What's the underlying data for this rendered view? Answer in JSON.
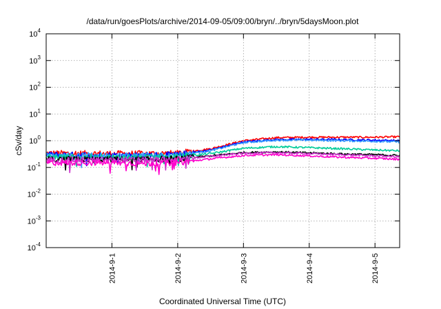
{
  "chart_data": {
    "type": "line",
    "title": "/data/run/goesPlots/archive/2014-09-05/09:00/bryn/../bryn/5daysMoon.plot",
    "xlabel": "Coordinated Universal Time (UTC)",
    "ylabel": "cSv/day",
    "yscale": "log",
    "ylim": [
      0.0001,
      10000
    ],
    "yticks": [
      {
        "base": "10",
        "exp": "4",
        "value": 10000
      },
      {
        "base": "10",
        "exp": "3",
        "value": 1000
      },
      {
        "base": "10",
        "exp": "2",
        "value": 100
      },
      {
        "base": "10",
        "exp": "1",
        "value": 10
      },
      {
        "base": "10",
        "exp": "0",
        "value": 1
      },
      {
        "base": "10",
        "exp": "-1",
        "value": 0.1
      },
      {
        "base": "10",
        "exp": "-2",
        "value": 0.01
      },
      {
        "base": "10",
        "exp": "-3",
        "value": 0.001
      },
      {
        "base": "10",
        "exp": "-4",
        "value": 0.0001
      }
    ],
    "xlim": [
      "2014-08-31 00:00",
      "2014-09-05 09:00"
    ],
    "xticks": [
      {
        "label": "2014-9-1",
        "date": "2014-09-01"
      },
      {
        "label": "2014-9-2",
        "date": "2014-09-02"
      },
      {
        "label": "2014-9-3",
        "date": "2014-09-03"
      },
      {
        "label": "2014-9-4",
        "date": "2014-09-04"
      },
      {
        "label": "2014-9-5",
        "date": "2014-09-05"
      }
    ],
    "grid": true,
    "x": [
      "2014-08-31 00:00",
      "2014-09-01 00:00",
      "2014-09-01 12:00",
      "2014-09-02 00:00",
      "2014-09-02 12:00",
      "2014-09-03 00:00",
      "2014-09-03 12:00",
      "2014-09-04 00:00",
      "2014-09-04 12:00",
      "2014-09-05 00:00",
      "2014-09-05 09:00"
    ],
    "series": [
      {
        "color": "#ff0000",
        "values": [
          0.34,
          0.33,
          0.33,
          0.34,
          0.5,
          1.0,
          1.3,
          1.35,
          1.35,
          1.35,
          1.4
        ]
      },
      {
        "color": "#0000ff",
        "values": [
          0.3,
          0.29,
          0.29,
          0.3,
          0.45,
          0.9,
          1.1,
          1.12,
          1.1,
          1.05,
          1.0
        ]
      },
      {
        "color": "#3399ff",
        "values": [
          0.28,
          0.28,
          0.28,
          0.29,
          0.42,
          0.85,
          1.05,
          1.05,
          1.0,
          0.95,
          0.9
        ]
      },
      {
        "color": "#00cc99",
        "values": [
          0.25,
          0.24,
          0.24,
          0.25,
          0.33,
          0.52,
          0.6,
          0.55,
          0.5,
          0.45,
          0.42
        ]
      },
      {
        "color": "#000000",
        "values": [
          0.2,
          0.2,
          0.2,
          0.21,
          0.27,
          0.36,
          0.38,
          0.35,
          0.32,
          0.3,
          0.28
        ]
      },
      {
        "color": "#cc33cc",
        "values": [
          0.19,
          0.19,
          0.19,
          0.2,
          0.26,
          0.34,
          0.36,
          0.33,
          0.3,
          0.27,
          0.25
        ]
      },
      {
        "color": "#ff00cc",
        "values": [
          0.15,
          0.15,
          0.14,
          0.15,
          0.21,
          0.28,
          0.3,
          0.27,
          0.24,
          0.22,
          0.2
        ]
      }
    ]
  }
}
